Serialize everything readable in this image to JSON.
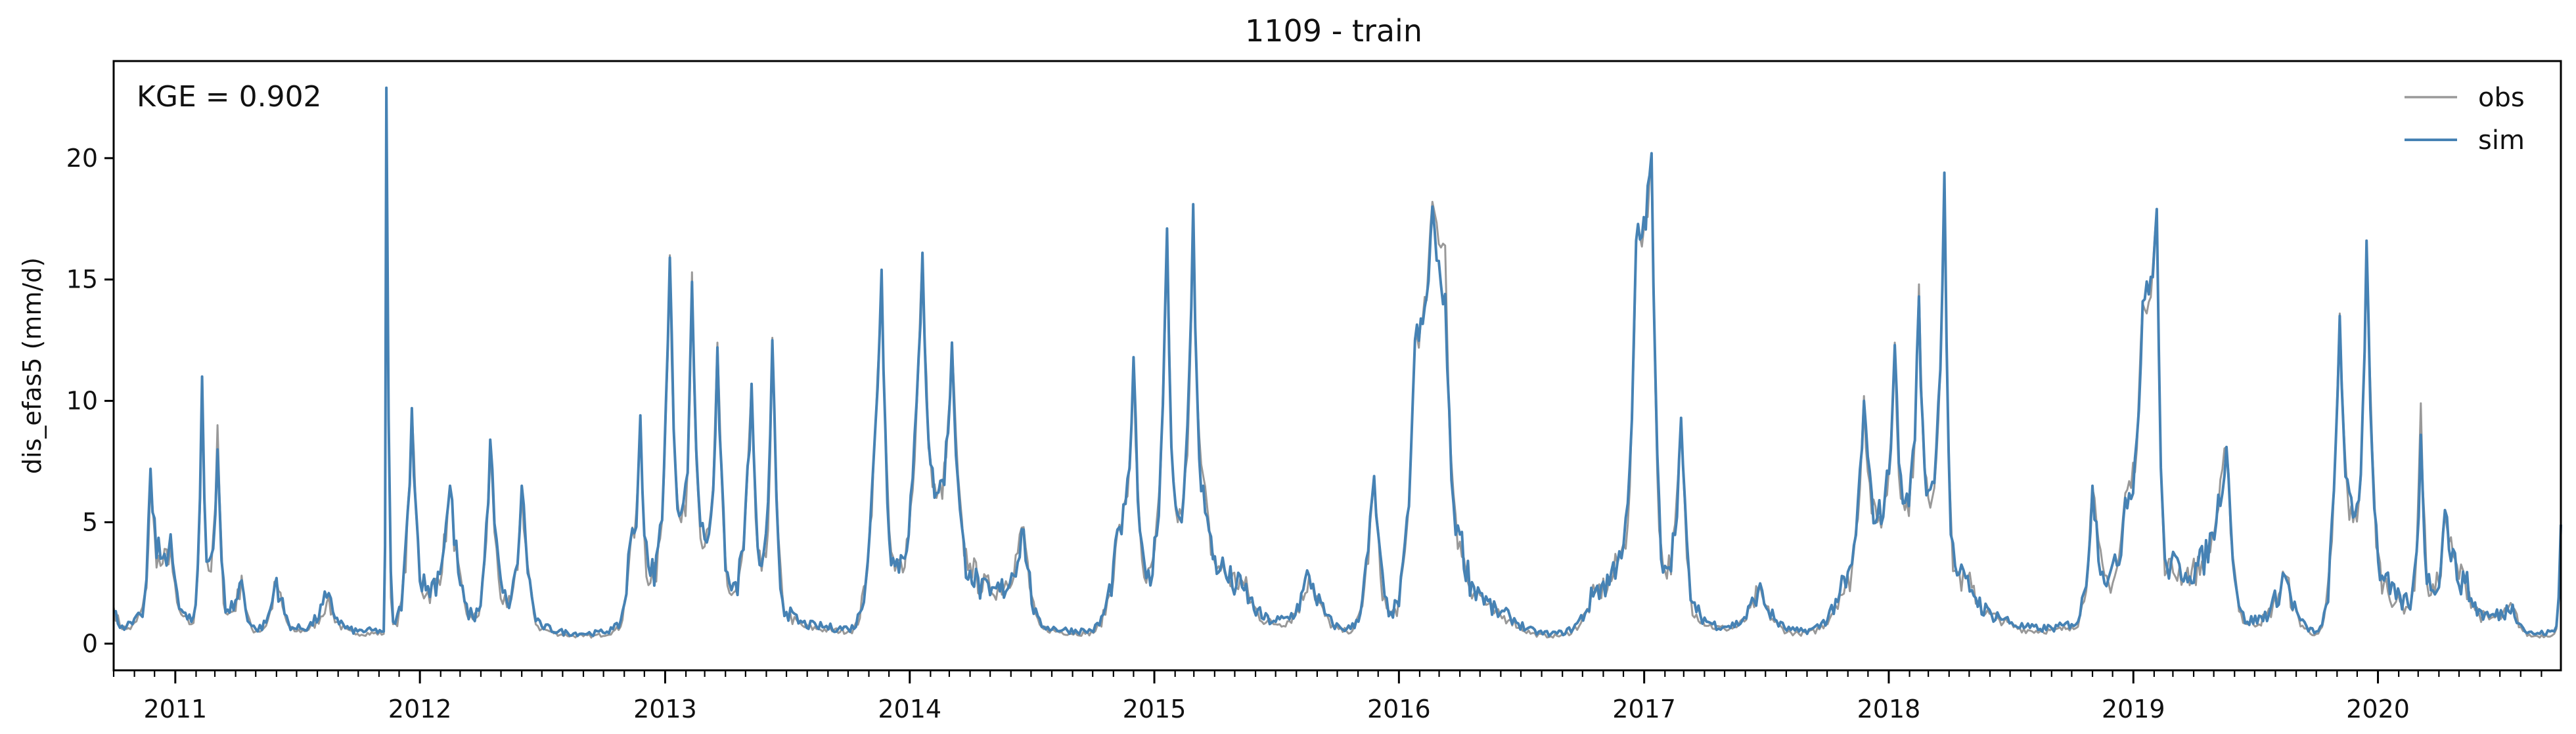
{
  "chart_data": {
    "type": "line",
    "title": "1109 - train",
    "ylabel": "dis_efas5 (mm/d)",
    "xlabel": "",
    "annotation": "KGE = 0.902",
    "legend_position": "top-right",
    "xlim": [
      "2010-10-01",
      "2020-09-30"
    ],
    "ylim": [
      -1.1,
      24
    ],
    "yticks": [
      0,
      5,
      10,
      15,
      20
    ],
    "xticks": [
      "2011",
      "2012",
      "2013",
      "2014",
      "2015",
      "2016",
      "2017",
      "2018",
      "2019",
      "2020"
    ],
    "grid": false,
    "series": [
      {
        "name": "obs",
        "color": "#999999",
        "points": [
          [
            "2010-10-01",
            1.5
          ],
          [
            "2010-10-20",
            0.6
          ],
          [
            "2010-11-10",
            1.3
          ],
          [
            "2010-11-25",
            6.8
          ],
          [
            "2010-12-10",
            3.2
          ],
          [
            "2010-12-25",
            4.0
          ],
          [
            "2011-01-10",
            1.2
          ],
          [
            "2011-01-25",
            0.8
          ],
          [
            "2011-02-10",
            10.8
          ],
          [
            "2011-02-20",
            3.0
          ],
          [
            "2011-03-05",
            9.0
          ],
          [
            "2011-03-20",
            1.2
          ],
          [
            "2011-04-10",
            2.8
          ],
          [
            "2011-05-01",
            0.5
          ],
          [
            "2011-06-01",
            2.6
          ],
          [
            "2011-07-01",
            0.5
          ],
          [
            "2011-08-15",
            1.7
          ],
          [
            "2011-09-30",
            0.4
          ],
          [
            "2011-11-08",
            0.4
          ],
          [
            "2011-11-12",
            22.9
          ],
          [
            "2011-11-22",
            0.8
          ],
          [
            "2011-12-20",
            9.6
          ],
          [
            "2012-01-10",
            2.0
          ],
          [
            "2012-02-15",
            6.4
          ],
          [
            "2012-03-20",
            1.0
          ],
          [
            "2012-04-15",
            8.0
          ],
          [
            "2012-05-10",
            1.5
          ],
          [
            "2012-06-01",
            6.4
          ],
          [
            "2012-07-01",
            0.6
          ],
          [
            "2012-09-01",
            0.3
          ],
          [
            "2012-10-15",
            0.5
          ],
          [
            "2012-11-10",
            4.0
          ],
          [
            "2012-11-25",
            9.2
          ],
          [
            "2012-12-10",
            2.5
          ],
          [
            "2013-01-08",
            16.0
          ],
          [
            "2013-01-25",
            5.0
          ],
          [
            "2013-02-10",
            15.3
          ],
          [
            "2013-03-01",
            4.0
          ],
          [
            "2013-03-20",
            12.4
          ],
          [
            "2013-04-10",
            2.0
          ],
          [
            "2013-05-10",
            10.7
          ],
          [
            "2013-05-25",
            3.0
          ],
          [
            "2013-06-10",
            12.6
          ],
          [
            "2013-07-01",
            1.2
          ],
          [
            "2013-08-15",
            0.6
          ],
          [
            "2013-10-01",
            0.5
          ],
          [
            "2013-11-20",
            15.4
          ],
          [
            "2013-12-10",
            3.0
          ],
          [
            "2014-01-20",
            16.1
          ],
          [
            "2014-02-10",
            6.0
          ],
          [
            "2014-03-05",
            12.3
          ],
          [
            "2014-04-01",
            3.3
          ],
          [
            "2014-05-01",
            2.2
          ],
          [
            "2014-06-20",
            4.8
          ],
          [
            "2014-07-20",
            0.6
          ],
          [
            "2014-09-20",
            0.4
          ],
          [
            "2014-11-10",
            4.9
          ],
          [
            "2014-12-01",
            11.7
          ],
          [
            "2014-12-20",
            2.5
          ],
          [
            "2015-01-20",
            17.1
          ],
          [
            "2015-02-05",
            5.0
          ],
          [
            "2015-02-28",
            18.1
          ],
          [
            "2015-03-15",
            6.9
          ],
          [
            "2015-04-10",
            3.0
          ],
          [
            "2015-05-15",
            2.4
          ],
          [
            "2015-07-01",
            0.8
          ],
          [
            "2015-08-20",
            2.8
          ],
          [
            "2015-10-15",
            0.5
          ],
          [
            "2015-11-25",
            6.8
          ],
          [
            "2015-12-20",
            1.2
          ],
          [
            "2016-01-25",
            12.6
          ],
          [
            "2016-02-20",
            18.2
          ],
          [
            "2016-03-10",
            16.4
          ],
          [
            "2016-04-01",
            4.2
          ],
          [
            "2016-05-01",
            2.0
          ],
          [
            "2016-06-15",
            1.0
          ],
          [
            "2016-08-15",
            0.3
          ],
          [
            "2016-10-20",
            2.1
          ],
          [
            "2016-11-25",
            3.6
          ],
          [
            "2016-12-20",
            16.5
          ],
          [
            "2017-01-12",
            20.2
          ],
          [
            "2017-02-01",
            3.0
          ],
          [
            "2017-02-25",
            9.2
          ],
          [
            "2017-03-20",
            1.2
          ],
          [
            "2017-05-01",
            0.6
          ],
          [
            "2017-06-20",
            2.1
          ],
          [
            "2017-08-20",
            0.4
          ],
          [
            "2017-10-20",
            2.0
          ],
          [
            "2017-11-25",
            10.2
          ],
          [
            "2017-12-15",
            5.0
          ],
          [
            "2018-01-10",
            12.4
          ],
          [
            "2018-01-25",
            5.5
          ],
          [
            "2018-02-15",
            14.8
          ],
          [
            "2018-03-01",
            6.0
          ],
          [
            "2018-03-25",
            19.4
          ],
          [
            "2018-04-10",
            3.0
          ],
          [
            "2018-05-05",
            2.3
          ],
          [
            "2018-06-15",
            1.0
          ],
          [
            "2018-08-15",
            0.5
          ],
          [
            "2018-10-01",
            0.7
          ],
          [
            "2018-11-01",
            6.4
          ],
          [
            "2018-11-25",
            2.5
          ],
          [
            "2018-12-20",
            6.2
          ],
          [
            "2019-01-15",
            14.0
          ],
          [
            "2019-02-05",
            17.9
          ],
          [
            "2019-02-20",
            3.0
          ],
          [
            "2019-03-20",
            2.8
          ],
          [
            "2019-05-20",
            8.1
          ],
          [
            "2019-06-20",
            0.8
          ],
          [
            "2019-08-15",
            2.8
          ],
          [
            "2019-10-01",
            0.4
          ],
          [
            "2019-11-05",
            13.6
          ],
          [
            "2019-11-25",
            5.0
          ],
          [
            "2019-12-15",
            16.5
          ],
          [
            "2020-01-10",
            2.5
          ],
          [
            "2020-02-15",
            1.5
          ],
          [
            "2020-03-05",
            9.9
          ],
          [
            "2020-03-20",
            2.0
          ],
          [
            "2020-04-10",
            5.4
          ],
          [
            "2020-05-10",
            2.6
          ],
          [
            "2020-06-15",
            1.0
          ],
          [
            "2020-07-20",
            1.5
          ],
          [
            "2020-08-20",
            0.3
          ],
          [
            "2020-09-20",
            0.4
          ],
          [
            "2020-09-30",
            4.8
          ]
        ]
      },
      {
        "name": "sim",
        "color": "#4682b4",
        "points": [
          [
            "2010-10-01",
            1.3
          ],
          [
            "2010-10-20",
            0.7
          ],
          [
            "2010-11-10",
            1.2
          ],
          [
            "2010-11-25",
            7.2
          ],
          [
            "2010-12-10",
            3.5
          ],
          [
            "2010-12-25",
            4.5
          ],
          [
            "2011-01-10",
            1.4
          ],
          [
            "2011-01-25",
            0.9
          ],
          [
            "2011-02-10",
            11.0
          ],
          [
            "2011-02-20",
            3.4
          ],
          [
            "2011-03-05",
            8.0
          ],
          [
            "2011-03-20",
            1.4
          ],
          [
            "2011-04-10",
            2.6
          ],
          [
            "2011-05-01",
            0.6
          ],
          [
            "2011-06-01",
            2.7
          ],
          [
            "2011-07-01",
            0.6
          ],
          [
            "2011-08-15",
            1.9
          ],
          [
            "2011-09-30",
            0.5
          ],
          [
            "2011-11-08",
            0.5
          ],
          [
            "2011-11-12",
            22.9
          ],
          [
            "2011-11-22",
            0.9
          ],
          [
            "2011-12-20",
            9.7
          ],
          [
            "2012-01-10",
            2.2
          ],
          [
            "2012-02-15",
            6.5
          ],
          [
            "2012-03-20",
            1.1
          ],
          [
            "2012-04-15",
            8.4
          ],
          [
            "2012-05-10",
            1.7
          ],
          [
            "2012-06-01",
            6.5
          ],
          [
            "2012-07-01",
            0.7
          ],
          [
            "2012-09-01",
            0.4
          ],
          [
            "2012-10-15",
            0.6
          ],
          [
            "2012-11-10",
            4.2
          ],
          [
            "2012-11-25",
            9.4
          ],
          [
            "2012-12-10",
            2.8
          ],
          [
            "2013-01-08",
            15.9
          ],
          [
            "2013-01-25",
            5.4
          ],
          [
            "2013-02-10",
            14.9
          ],
          [
            "2013-03-01",
            4.3
          ],
          [
            "2013-03-20",
            12.2
          ],
          [
            "2013-04-10",
            2.2
          ],
          [
            "2013-05-10",
            10.7
          ],
          [
            "2013-05-25",
            3.2
          ],
          [
            "2013-06-10",
            12.5
          ],
          [
            "2013-07-01",
            1.3
          ],
          [
            "2013-08-15",
            0.7
          ],
          [
            "2013-10-01",
            0.6
          ],
          [
            "2013-11-20",
            15.4
          ],
          [
            "2013-12-10",
            3.2
          ],
          [
            "2014-01-20",
            16.1
          ],
          [
            "2014-02-10",
            6.2
          ],
          [
            "2014-03-05",
            12.4
          ],
          [
            "2014-04-01",
            3.0
          ],
          [
            "2014-05-01",
            2.0
          ],
          [
            "2014-06-20",
            4.7
          ],
          [
            "2014-07-20",
            0.7
          ],
          [
            "2014-09-20",
            0.5
          ],
          [
            "2014-11-10",
            4.8
          ],
          [
            "2014-12-01",
            11.8
          ],
          [
            "2014-12-20",
            2.7
          ],
          [
            "2015-01-20",
            17.1
          ],
          [
            "2015-02-05",
            5.3
          ],
          [
            "2015-02-28",
            18.1
          ],
          [
            "2015-03-15",
            6.5
          ],
          [
            "2015-04-10",
            3.1
          ],
          [
            "2015-05-15",
            2.2
          ],
          [
            "2015-07-01",
            0.9
          ],
          [
            "2015-08-20",
            2.8
          ],
          [
            "2015-10-15",
            0.6
          ],
          [
            "2015-11-25",
            6.9
          ],
          [
            "2015-12-20",
            1.3
          ],
          [
            "2016-01-25",
            12.5
          ],
          [
            "2016-02-20",
            18.0
          ],
          [
            "2016-03-10",
            14.4
          ],
          [
            "2016-04-01",
            4.5
          ],
          [
            "2016-05-01",
            2.1
          ],
          [
            "2016-06-15",
            1.1
          ],
          [
            "2016-08-15",
            0.4
          ],
          [
            "2016-10-20",
            2.2
          ],
          [
            "2016-11-25",
            3.8
          ],
          [
            "2016-12-20",
            16.6
          ],
          [
            "2017-01-12",
            20.2
          ],
          [
            "2017-02-01",
            3.2
          ],
          [
            "2017-02-25",
            9.3
          ],
          [
            "2017-03-20",
            1.3
          ],
          [
            "2017-05-01",
            0.7
          ],
          [
            "2017-06-20",
            2.2
          ],
          [
            "2017-08-20",
            0.5
          ],
          [
            "2017-10-20",
            2.1
          ],
          [
            "2017-11-25",
            10.0
          ],
          [
            "2017-12-15",
            5.2
          ],
          [
            "2018-01-10",
            12.3
          ],
          [
            "2018-01-25",
            5.8
          ],
          [
            "2018-02-15",
            14.3
          ],
          [
            "2018-03-01",
            6.3
          ],
          [
            "2018-03-25",
            19.4
          ],
          [
            "2018-04-10",
            3.2
          ],
          [
            "2018-05-05",
            2.2
          ],
          [
            "2018-06-15",
            1.1
          ],
          [
            "2018-08-15",
            0.6
          ],
          [
            "2018-10-01",
            0.8
          ],
          [
            "2018-11-01",
            6.5
          ],
          [
            "2018-11-25",
            2.7
          ],
          [
            "2018-12-20",
            6.0
          ],
          [
            "2019-01-15",
            14.1
          ],
          [
            "2019-02-05",
            17.9
          ],
          [
            "2019-02-20",
            3.2
          ],
          [
            "2019-03-20",
            2.9
          ],
          [
            "2019-05-20",
            8.1
          ],
          [
            "2019-06-20",
            0.9
          ],
          [
            "2019-08-15",
            2.8
          ],
          [
            "2019-10-01",
            0.5
          ],
          [
            "2019-11-05",
            13.5
          ],
          [
            "2019-11-25",
            5.2
          ],
          [
            "2019-12-15",
            16.6
          ],
          [
            "2020-01-10",
            2.6
          ],
          [
            "2020-02-15",
            1.6
          ],
          [
            "2020-03-05",
            8.6
          ],
          [
            "2020-03-20",
            2.2
          ],
          [
            "2020-04-10",
            5.5
          ],
          [
            "2020-05-10",
            2.5
          ],
          [
            "2020-06-15",
            1.1
          ],
          [
            "2020-07-20",
            1.6
          ],
          [
            "2020-08-20",
            0.4
          ],
          [
            "2020-09-20",
            0.5
          ],
          [
            "2020-09-30",
            4.9
          ]
        ]
      }
    ]
  }
}
